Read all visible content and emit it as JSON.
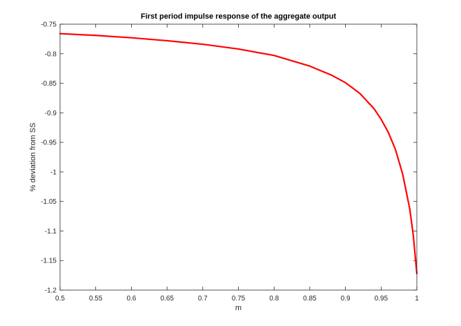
{
  "chart_data": {
    "type": "line",
    "title": "First period impulse response of the aggregate output",
    "xlabel": "m",
    "ylabel": "% deviation from SS",
    "xlim": [
      0.5,
      1
    ],
    "ylim": [
      -1.2,
      -0.75
    ],
    "xticks": [
      0.5,
      0.55,
      0.6,
      0.65,
      0.7,
      0.75,
      0.8,
      0.85,
      0.9,
      0.95,
      1
    ],
    "xtick_labels": [
      "0.5",
      "0.55",
      "0.6",
      "0.65",
      "0.7",
      "0.75",
      "0.8",
      "0.85",
      "0.9",
      "0.95",
      "1"
    ],
    "yticks": [
      -0.75,
      -0.8,
      -0.85,
      -0.9,
      -0.95,
      -1,
      -1.05,
      -1.1,
      -1.15,
      -1.2
    ],
    "ytick_labels": [
      "-0.75",
      "-0.8",
      "-0.85",
      "-0.9",
      "-0.95",
      "-1",
      "-1.05",
      "-1.1",
      "-1.15",
      "-1.2"
    ],
    "grid": false,
    "box": true,
    "series": [
      {
        "color": "#ff0000",
        "x": [
          0.5,
          0.55,
          0.6,
          0.65,
          0.7,
          0.75,
          0.8,
          0.85,
          0.88,
          0.9,
          0.92,
          0.94,
          0.95,
          0.96,
          0.97,
          0.98,
          0.99,
          0.995,
          1.0
        ],
        "y": [
          -0.766,
          -0.769,
          -0.773,
          -0.778,
          -0.784,
          -0.792,
          -0.803,
          -0.821,
          -0.836,
          -0.849,
          -0.867,
          -0.893,
          -0.911,
          -0.933,
          -0.962,
          -1.003,
          -1.062,
          -1.107,
          -1.172
        ]
      }
    ]
  }
}
